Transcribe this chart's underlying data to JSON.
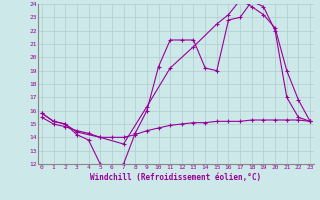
{
  "xlabel": "Windchill (Refroidissement éolien,°C)",
  "bg_color": "#cce8e8",
  "grid_color": "#b0cccc",
  "line_color": "#990099",
  "xmin": 0,
  "xmax": 23,
  "ymin": 12,
  "ymax": 24,
  "curve1_x": [
    0,
    1,
    2,
    3,
    4,
    5,
    6,
    7,
    8,
    9,
    10,
    11,
    12,
    13,
    14,
    15,
    16,
    17,
    18,
    19,
    20,
    21,
    22,
    23
  ],
  "curve1_y": [
    15.8,
    15.2,
    15.0,
    14.2,
    13.8,
    12.0,
    11.8,
    12.0,
    14.3,
    16.0,
    19.3,
    21.3,
    21.3,
    21.3,
    19.2,
    19.0,
    22.8,
    23.0,
    24.2,
    23.8,
    22.0,
    17.0,
    15.5,
    15.2
  ],
  "curve2_x": [
    0,
    1,
    2,
    3,
    5,
    7,
    9,
    11,
    13,
    15,
    16,
    17,
    18,
    19,
    20,
    21,
    22,
    23
  ],
  "curve2_y": [
    15.8,
    15.2,
    15.0,
    14.4,
    14.0,
    13.5,
    16.3,
    19.2,
    20.8,
    22.5,
    23.2,
    24.3,
    23.8,
    23.2,
    22.2,
    19.0,
    16.8,
    15.2
  ],
  "curve3_x": [
    0,
    1,
    2,
    3,
    4,
    5,
    6,
    7,
    8,
    9,
    10,
    11,
    12,
    13,
    14,
    15,
    16,
    17,
    18,
    19,
    20,
    21,
    22,
    23
  ],
  "curve3_y": [
    15.5,
    15.0,
    14.8,
    14.5,
    14.3,
    14.0,
    14.0,
    14.0,
    14.2,
    14.5,
    14.7,
    14.9,
    15.0,
    15.1,
    15.1,
    15.2,
    15.2,
    15.2,
    15.3,
    15.3,
    15.3,
    15.3,
    15.3,
    15.2
  ]
}
